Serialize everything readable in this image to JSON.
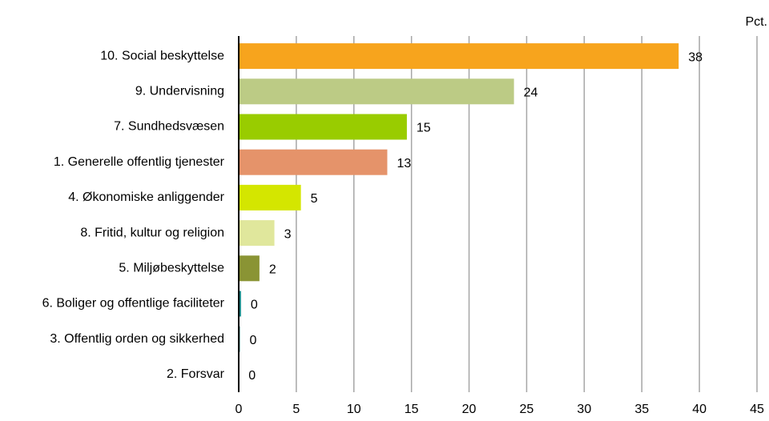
{
  "chart_data": {
    "type": "barh",
    "unit_label": "Pct.",
    "categories": [
      "10. Social beskyttelse",
      "9. Undervisning",
      "7. Sundhedsvæsen",
      "1. Generelle offentlig tjenester",
      "4. Økonomiske anliggender",
      "8. Fritid, kultur og religion",
      "5. Miljøbeskyttelse",
      "6. Boliger og offentlige faciliteter",
      "3. Offentlig orden og sikkerhed",
      "2. Forsvar"
    ],
    "values": [
      38.2,
      23.9,
      14.6,
      12.9,
      5.4,
      3.1,
      1.8,
      0.2,
      0.1,
      0.02
    ],
    "value_labels": [
      "38",
      "24",
      "15",
      "13",
      "5",
      "3",
      "2",
      "0",
      "0",
      "0"
    ],
    "colors": [
      "#f7a41d",
      "#bccb85",
      "#99cc00",
      "#e5936a",
      "#d4e600",
      "#e0e79c",
      "#8a9434",
      "#1a8a8a",
      "#0b5e57",
      "#000000"
    ],
    "xlim": [
      0,
      45
    ],
    "xticks": [
      0,
      5,
      10,
      15,
      20,
      25,
      30,
      35,
      40,
      45
    ],
    "grid": true
  }
}
